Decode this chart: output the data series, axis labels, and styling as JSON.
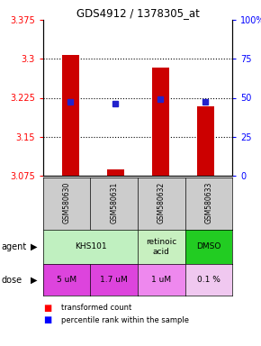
{
  "title": "GDS4912 / 1378305_at",
  "samples": [
    "GSM580630",
    "GSM580631",
    "GSM580632",
    "GSM580633"
  ],
  "red_values": [
    3.308,
    3.088,
    3.283,
    3.208
  ],
  "blue_values": [
    3.218,
    3.213,
    3.222,
    3.218
  ],
  "ylim_left": [
    3.075,
    3.375
  ],
  "ylim_right": [
    0,
    100
  ],
  "yticks_left": [
    3.075,
    3.15,
    3.225,
    3.3,
    3.375
  ],
  "ytick_labels_left": [
    "3.075",
    "3.15",
    "3.225",
    "3.3",
    "3.375"
  ],
  "yticks_right": [
    0,
    25,
    50,
    75,
    100
  ],
  "ytick_labels_right": [
    "0",
    "25",
    "50",
    "75",
    "100%"
  ],
  "hlines": [
    3.15,
    3.225,
    3.3
  ],
  "agent_cells": [
    {
      "label": "KHS101",
      "span": 2,
      "color": "#c0f0c0"
    },
    {
      "label": "retinoic\nacid",
      "span": 1,
      "color": "#c8f0c0"
    },
    {
      "label": "DMSO",
      "span": 1,
      "color": "#22cc22"
    }
  ],
  "dose_cells": [
    {
      "label": "5 uM",
      "color": "#dd44dd"
    },
    {
      "label": "1.7 uM",
      "color": "#dd44dd"
    },
    {
      "label": "1 uM",
      "color": "#ee88ee"
    },
    {
      "label": "0.1 %",
      "color": "#f0c8f0"
    }
  ],
  "sample_bg": "#cccccc",
  "bar_color": "#cc0000",
  "dot_color": "#2222cc",
  "bar_bottom": 3.075,
  "bar_width": 0.38
}
